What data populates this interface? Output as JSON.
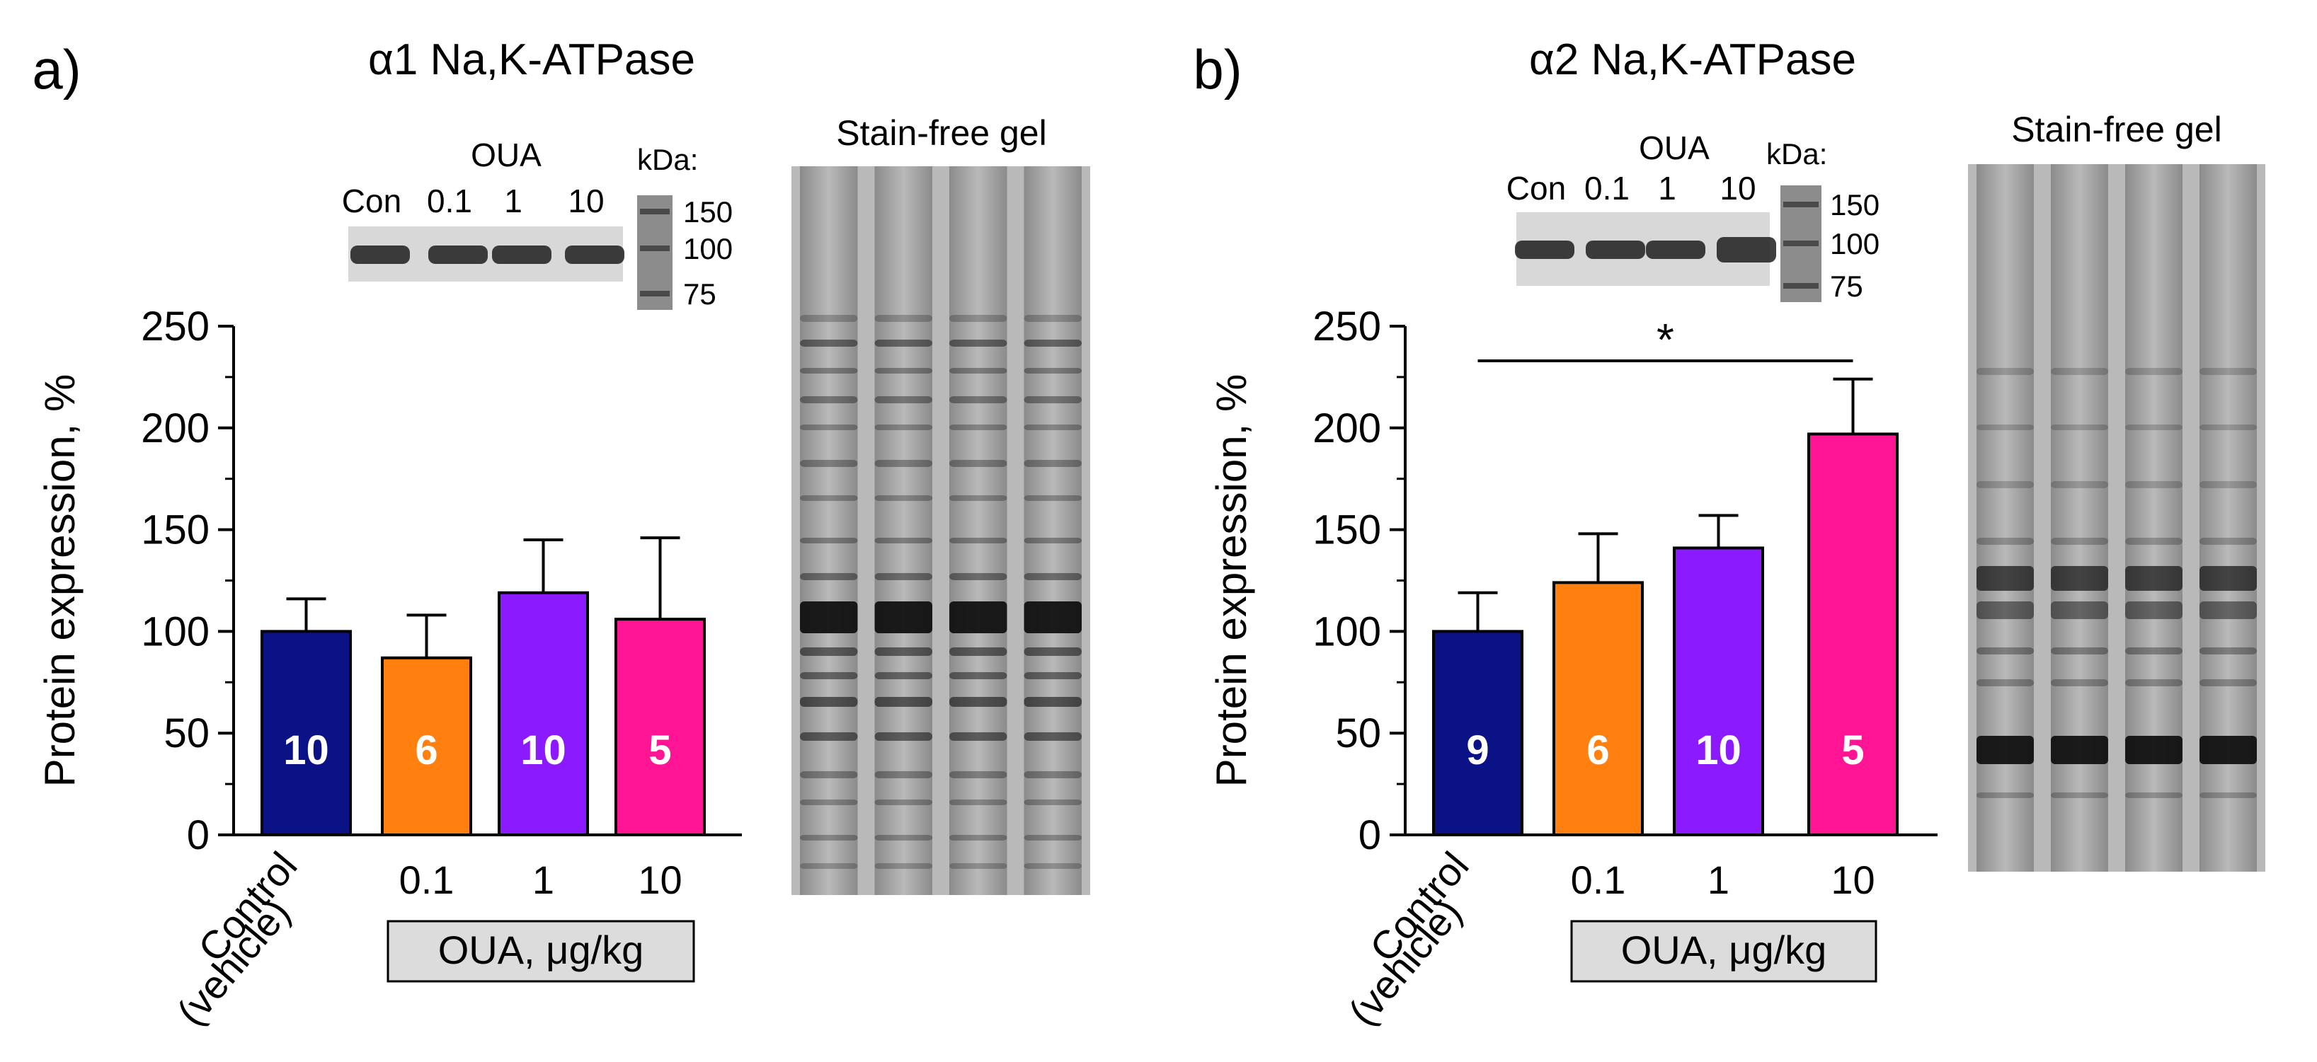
{
  "panels": [
    {
      "letter": "a)",
      "title": "α1 Na,K-ATPase",
      "stain_label": "Stain-free gel",
      "blot": {
        "header": "OUA",
        "lanes": [
          "Con",
          "0.1",
          "1",
          "10"
        ],
        "kda_label": "kDa:",
        "kda_marks": [
          "150",
          "100",
          "75"
        ]
      },
      "xaxis_group_label": "OUA, μg/kg",
      "chart_data": {
        "type": "bar",
        "title": "",
        "categories": [
          "Control (vehicle)",
          "0.1",
          "1",
          "10"
        ],
        "category_lines": [
          [
            "Control",
            "(vehicle)"
          ],
          [
            "0.1"
          ],
          [
            "1"
          ],
          [
            "10"
          ]
        ],
        "values": [
          100,
          87,
          119,
          106
        ],
        "errors": [
          16,
          21,
          26,
          40
        ],
        "n": [
          "10",
          "6",
          "10",
          "5"
        ],
        "colors": [
          "#0A1286",
          "#FF7F0F",
          "#8C1AFF",
          "#FF1493"
        ],
        "ylabel": "Protein expression, %",
        "ylim": [
          0,
          250
        ],
        "yticks": [
          "0",
          "50",
          "100",
          "150",
          "200",
          "250"
        ],
        "significance": null
      }
    },
    {
      "letter": "b)",
      "title": "α2 Na,K-ATPase",
      "stain_label": "Stain-free gel",
      "blot": {
        "header": "OUA",
        "lanes": [
          "Con",
          "0.1",
          "1",
          "10"
        ],
        "kda_label": "kDa:",
        "kda_marks": [
          "150",
          "100",
          "75"
        ]
      },
      "xaxis_group_label": "OUA, μg/kg",
      "chart_data": {
        "type": "bar",
        "title": "",
        "categories": [
          "Control (vehicle)",
          "0.1",
          "1",
          "10"
        ],
        "category_lines": [
          [
            "Control",
            "(vehicle)"
          ],
          [
            "0.1"
          ],
          [
            "1"
          ],
          [
            "10"
          ]
        ],
        "values": [
          100,
          124,
          141,
          197
        ],
        "errors": [
          19,
          24,
          16,
          27
        ],
        "n": [
          "9",
          "6",
          "10",
          "5"
        ],
        "colors": [
          "#0A1286",
          "#FF7F0F",
          "#8C1AFF",
          "#FF1493"
        ],
        "ylabel": "Protein expression, %",
        "ylim": [
          0,
          250
        ],
        "yticks": [
          "0",
          "50",
          "100",
          "150",
          "200",
          "250"
        ],
        "significance": {
          "from": 0,
          "to": 3,
          "label": "*"
        }
      }
    }
  ]
}
